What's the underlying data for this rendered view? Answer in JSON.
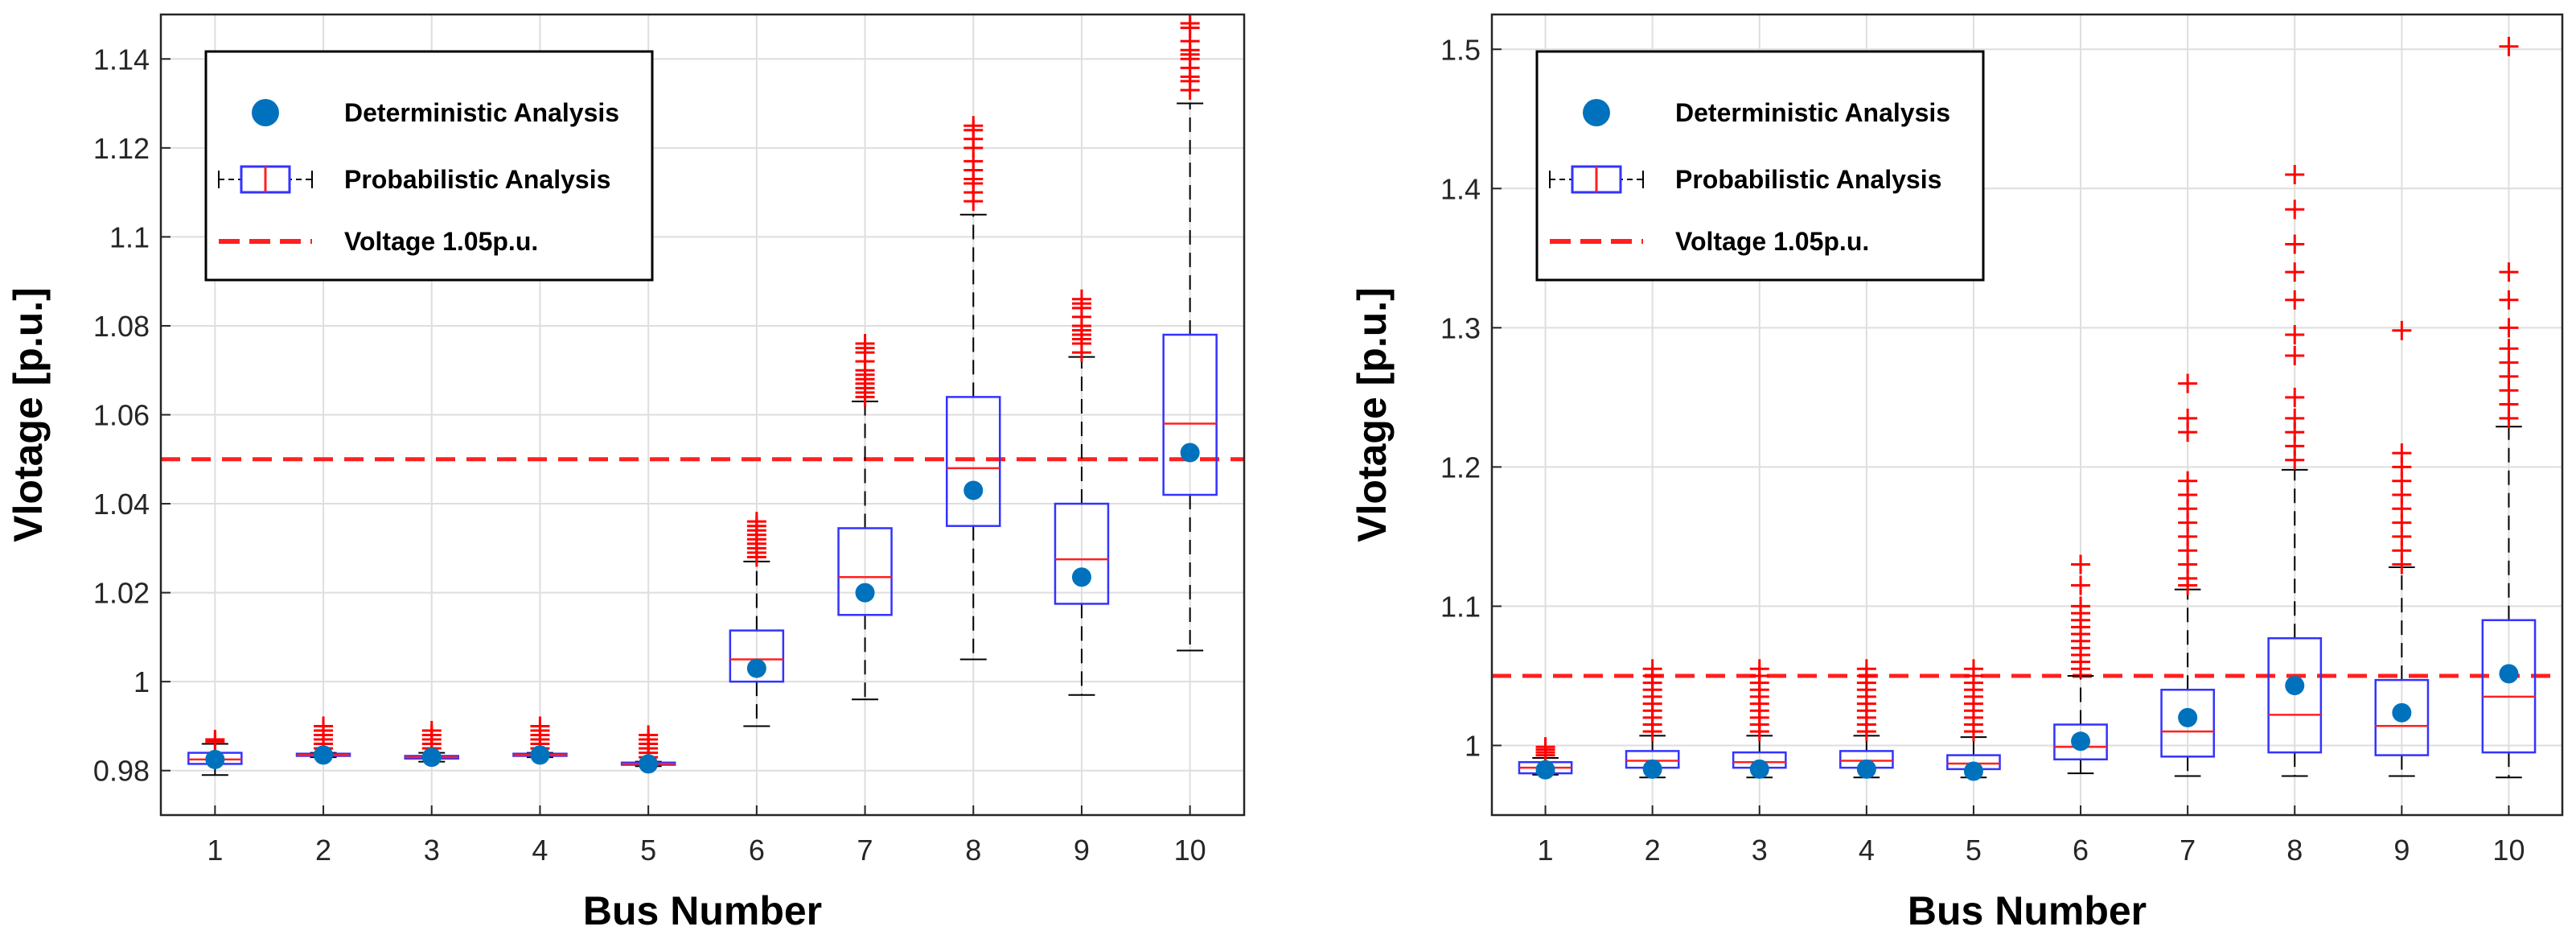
{
  "colors": {
    "box": "#3333ff",
    "median": "#ff2020",
    "outlier": "#ff0000",
    "whisker": "#000000",
    "mean_marker": "#0072bd",
    "threshold": "#ff2020",
    "grid": "#dedede"
  },
  "legend": {
    "deterministic_label": "Deterministic Analysis",
    "probabilistic_label": "Probabilistic Analysis",
    "threshold_label": "Voltage 1.05p.u."
  },
  "chart_data": [
    {
      "type": "box",
      "title": "",
      "xlabel": "Bus Number",
      "ylabel": "Vlotage [p.u.]",
      "categories": [
        "1",
        "2",
        "3",
        "4",
        "5",
        "6",
        "7",
        "8",
        "9",
        "10"
      ],
      "ylim": [
        0.97,
        1.15
      ],
      "yticks": [
        0.98,
        1,
        1.02,
        1.04,
        1.06,
        1.08,
        1.1,
        1.12,
        1.14
      ],
      "ytick_labels": [
        "0.98",
        "1",
        "1.02",
        "1.04",
        "1.06",
        "1.08",
        "1.1",
        "1.12",
        "1.14"
      ],
      "threshold": 1.05,
      "grid": true,
      "legend_position": "top-left",
      "boxes": [
        {
          "bus": "1",
          "whisker_low": 0.979,
          "q1": 0.9815,
          "median": 0.9825,
          "q3": 0.984,
          "whisker_high": 0.986,
          "outliers": [
            0.9865,
            0.987
          ]
        },
        {
          "bus": "2",
          "whisker_low": 0.983,
          "q1": 0.9833,
          "median": 0.9835,
          "q3": 0.9838,
          "whisker_high": 0.984,
          "outliers": [
            0.985,
            0.986,
            0.987,
            0.988,
            0.989,
            0.99
          ]
        },
        {
          "bus": "3",
          "whisker_low": 0.982,
          "q1": 0.9827,
          "median": 0.983,
          "q3": 0.9833,
          "whisker_high": 0.984,
          "outliers": [
            0.985,
            0.986,
            0.987,
            0.988,
            0.989
          ]
        },
        {
          "bus": "4",
          "whisker_low": 0.983,
          "q1": 0.9833,
          "median": 0.9835,
          "q3": 0.9838,
          "whisker_high": 0.984,
          "outliers": [
            0.985,
            0.986,
            0.987,
            0.988,
            0.989,
            0.99
          ]
        },
        {
          "bus": "5",
          "whisker_low": 0.981,
          "q1": 0.9813,
          "median": 0.9815,
          "q3": 0.9818,
          "whisker_high": 0.982,
          "outliers": [
            0.983,
            0.984,
            0.985,
            0.986,
            0.987,
            0.988
          ]
        },
        {
          "bus": "6",
          "whisker_low": 0.99,
          "q1": 1.0,
          "median": 1.005,
          "q3": 1.0115,
          "whisker_high": 1.027,
          "outliers": [
            1.028,
            1.029,
            1.03,
            1.031,
            1.032,
            1.033,
            1.034,
            1.035,
            1.036
          ]
        },
        {
          "bus": "7",
          "whisker_low": 0.996,
          "q1": 1.015,
          "median": 1.0235,
          "q3": 1.0345,
          "whisker_high": 1.063,
          "outliers": [
            1.064,
            1.065,
            1.066,
            1.067,
            1.068,
            1.069,
            1.07,
            1.072,
            1.074,
            1.075,
            1.076
          ]
        },
        {
          "bus": "8",
          "whisker_low": 1.005,
          "q1": 1.035,
          "median": 1.048,
          "q3": 1.064,
          "whisker_high": 1.105,
          "outliers": [
            1.108,
            1.11,
            1.112,
            1.113,
            1.115,
            1.117,
            1.12,
            1.122,
            1.124,
            1.125
          ]
        },
        {
          "bus": "9",
          "whisker_low": 0.997,
          "q1": 1.0175,
          "median": 1.0275,
          "q3": 1.04,
          "whisker_high": 1.073,
          "outliers": [
            1.074,
            1.076,
            1.077,
            1.078,
            1.079,
            1.08,
            1.082,
            1.084,
            1.085,
            1.086
          ]
        },
        {
          "bus": "10",
          "whisker_low": 1.007,
          "q1": 1.042,
          "median": 1.058,
          "q3": 1.078,
          "whisker_high": 1.13,
          "outliers": [
            1.133,
            1.135,
            1.136,
            1.138,
            1.14,
            1.141,
            1.142,
            1.144,
            1.147,
            1.148
          ]
        }
      ],
      "deterministic": [
        0.9825,
        0.9835,
        0.983,
        0.9835,
        0.9815,
        1.003,
        1.02,
        1.043,
        1.0235,
        1.0515
      ]
    },
    {
      "type": "box",
      "title": "",
      "xlabel": "Bus Number",
      "ylabel": "Vlotage [p.u.]",
      "categories": [
        "1",
        "2",
        "3",
        "4",
        "5",
        "6",
        "7",
        "8",
        "9",
        "10"
      ],
      "ylim": [
        0.95,
        1.525
      ],
      "yticks": [
        1,
        1.1,
        1.2,
        1.3,
        1.4,
        1.5
      ],
      "ytick_labels": [
        "1",
        "1.1",
        "1.2",
        "1.3",
        "1.4",
        "1.5"
      ],
      "threshold": 1.05,
      "grid": true,
      "legend_position": "top-left",
      "boxes": [
        {
          "bus": "1",
          "whisker_low": 0.979,
          "q1": 0.98,
          "median": 0.984,
          "q3": 0.988,
          "whisker_high": 0.991,
          "outliers": [
            0.993,
            0.995,
            0.997,
            0.999
          ]
        },
        {
          "bus": "2",
          "whisker_low": 0.977,
          "q1": 0.984,
          "median": 0.989,
          "q3": 0.996,
          "whisker_high": 1.007,
          "outliers": [
            1.01,
            1.015,
            1.02,
            1.025,
            1.03,
            1.035,
            1.04,
            1.045,
            1.05,
            1.055
          ]
        },
        {
          "bus": "3",
          "whisker_low": 0.977,
          "q1": 0.984,
          "median": 0.988,
          "q3": 0.995,
          "whisker_high": 1.007,
          "outliers": [
            1.01,
            1.015,
            1.02,
            1.025,
            1.03,
            1.035,
            1.04,
            1.045,
            1.05,
            1.055
          ]
        },
        {
          "bus": "4",
          "whisker_low": 0.977,
          "q1": 0.984,
          "median": 0.989,
          "q3": 0.996,
          "whisker_high": 1.007,
          "outliers": [
            1.01,
            1.015,
            1.02,
            1.025,
            1.03,
            1.035,
            1.04,
            1.045,
            1.05,
            1.055
          ]
        },
        {
          "bus": "5",
          "whisker_low": 0.977,
          "q1": 0.983,
          "median": 0.987,
          "q3": 0.993,
          "whisker_high": 1.006,
          "outliers": [
            1.01,
            1.015,
            1.02,
            1.025,
            1.03,
            1.035,
            1.04,
            1.045,
            1.05,
            1.055
          ]
        },
        {
          "bus": "6",
          "whisker_low": 0.98,
          "q1": 0.99,
          "median": 0.999,
          "q3": 1.015,
          "whisker_high": 1.05,
          "outliers": [
            1.055,
            1.06,
            1.065,
            1.07,
            1.075,
            1.08,
            1.085,
            1.09,
            1.095,
            1.1,
            1.115,
            1.13
          ]
        },
        {
          "bus": "7",
          "whisker_low": 0.978,
          "q1": 0.992,
          "median": 1.01,
          "q3": 1.04,
          "whisker_high": 1.112,
          "outliers": [
            1.115,
            1.12,
            1.13,
            1.14,
            1.15,
            1.16,
            1.17,
            1.18,
            1.19,
            1.225,
            1.235,
            1.26
          ]
        },
        {
          "bus": "8",
          "whisker_low": 0.978,
          "q1": 0.995,
          "median": 1.022,
          "q3": 1.077,
          "whisker_high": 1.198,
          "outliers": [
            1.205,
            1.215,
            1.225,
            1.235,
            1.25,
            1.28,
            1.295,
            1.32,
            1.34,
            1.36,
            1.385,
            1.41
          ]
        },
        {
          "bus": "9",
          "whisker_low": 0.978,
          "q1": 0.993,
          "median": 1.014,
          "q3": 1.047,
          "whisker_high": 1.128,
          "outliers": [
            1.13,
            1.14,
            1.15,
            1.16,
            1.17,
            1.18,
            1.19,
            1.2,
            1.21,
            1.298
          ]
        },
        {
          "bus": "10",
          "whisker_low": 0.977,
          "q1": 0.995,
          "median": 1.035,
          "q3": 1.09,
          "whisker_high": 1.229,
          "outliers": [
            1.235,
            1.245,
            1.255,
            1.265,
            1.275,
            1.285,
            1.3,
            1.32,
            1.34,
            1.502
          ]
        }
      ],
      "deterministic": [
        0.9825,
        0.983,
        0.983,
        0.983,
        0.9815,
        1.003,
        1.02,
        1.043,
        1.0235,
        1.0515
      ]
    }
  ]
}
